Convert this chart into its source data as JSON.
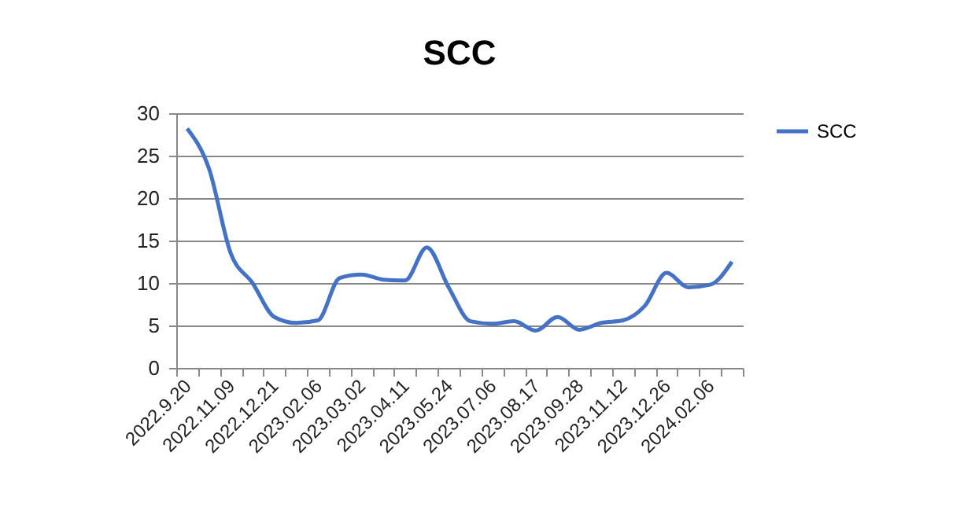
{
  "chart_data": {
    "type": "line",
    "title": "SCC",
    "categories": [
      "2022.9.20",
      null,
      "2022.11.09",
      null,
      "2022.12.21",
      null,
      "2023.02.06",
      null,
      "2023.03.02",
      null,
      "2023.04.11",
      null,
      "2023.05.24",
      null,
      "2023.07.06",
      null,
      "2023.08.17",
      null,
      "2023.09.28",
      null,
      "2023.11.12",
      null,
      "2023.12.26",
      null,
      "2024.02.06",
      null
    ],
    "series": [
      {
        "name": "SCC",
        "color": "#4472c4",
        "values": [
          28.2,
          23.5,
          13.5,
          10,
          6,
          5.3,
          5.6,
          10.6,
          11,
          10.4,
          10.3,
          14.2,
          9.5,
          5.5,
          5.2,
          5.5,
          4.4,
          6,
          4.5,
          5.3,
          5.6,
          7.3,
          11.2,
          9.5,
          9.8,
          12.5
        ]
      }
    ],
    "ylim": [
      0,
      30
    ],
    "yticks": [
      0,
      5,
      10,
      15,
      20,
      25,
      30
    ],
    "grid": "y",
    "legend": "right",
    "marker": "none",
    "line_style": "solid"
  }
}
